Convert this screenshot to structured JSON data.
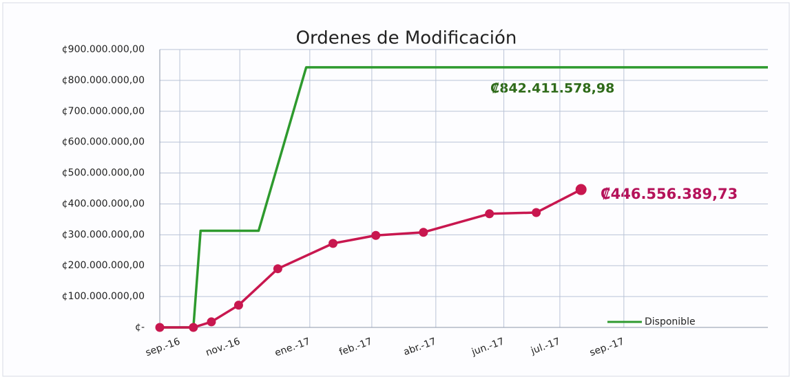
{
  "chart_data": {
    "type": "line",
    "title": "Ordenes de Modificación",
    "xlim": [
      0,
      15.2
    ],
    "xticks": [
      {
        "value": 0.5,
        "label": "sep.-16"
      },
      {
        "value": 2,
        "label": "nov.-16"
      },
      {
        "value": 3.75,
        "label": "ene.-17"
      },
      {
        "value": 5.3,
        "label": "feb.-17"
      },
      {
        "value": 6.9,
        "label": "abr.-17"
      },
      {
        "value": 8.6,
        "label": "jun.-17"
      },
      {
        "value": 10,
        "label": "jul.-17"
      },
      {
        "value": 11.6,
        "label": "sep.-17"
      }
    ],
    "ylim": [
      0,
      900000000
    ],
    "yticks": [
      {
        "value": 0,
        "label": "¢-"
      },
      {
        "value": 100000000,
        "label": "¢100.000.000,00"
      },
      {
        "value": 200000000,
        "label": "¢200.000.000,00"
      },
      {
        "value": 300000000,
        "label": "¢300.000.000,00"
      },
      {
        "value": 400000000,
        "label": "¢400.000.000,00"
      },
      {
        "value": 500000000,
        "label": "¢500.000.000,00"
      },
      {
        "value": 600000000,
        "label": "¢600.000.000,00"
      },
      {
        "value": 700000000,
        "label": "¢700.000.000,00"
      },
      {
        "value": 800000000,
        "label": "¢800.000.000,00"
      },
      {
        "value": 900000000,
        "label": "¢900.000.000,00"
      }
    ],
    "grid": true,
    "legend": "lower right",
    "series": [
      {
        "name": "Disponible",
        "color": "#2e9a2e",
        "markers": false,
        "x": [
          0,
          0.84,
          1.02,
          2.47,
          3.66,
          15.2
        ],
        "values": [
          0,
          0,
          313000000,
          313000000,
          842411578.98,
          842411578.98
        ]
      },
      {
        "color": "#c8174f",
        "markers": true,
        "x": [
          0,
          0.84,
          1.29,
          1.97,
          2.95,
          4.33,
          5.4,
          6.59,
          8.24,
          9.41,
          10.53
        ],
        "values": [
          0,
          0,
          18000000,
          72000000,
          190000000,
          272000000,
          298000000,
          308000000,
          368000000,
          372000000,
          446556389.73
        ]
      }
    ],
    "annotations": [
      "₡842.411.578,98",
      "₡446.556.389,73"
    ]
  }
}
